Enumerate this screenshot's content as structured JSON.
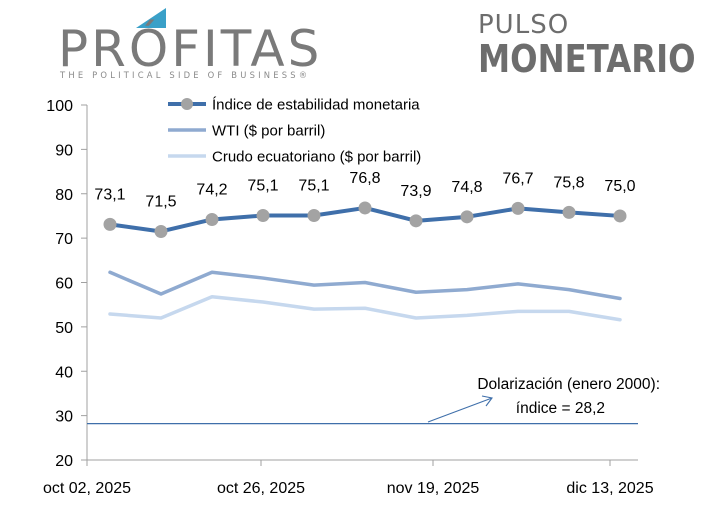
{
  "brand": {
    "name": "PRÓFITAS",
    "tagline": "THE POLITICAL SIDE OF BUSINESS",
    "trademark": "®",
    "logo_color": "#3aa0c8",
    "section_line1": "PULSO",
    "section_line2": "MONETARIO"
  },
  "colors": {
    "index": "#3f6faa",
    "marker": "#a3a3a3",
    "wti": "#8faad0",
    "crudo": "#c6d8ee",
    "baseline": "#3f6faa",
    "axis": "#a0a0a0"
  },
  "chart_data": {
    "type": "line",
    "x_ticks": [
      "oct 02, 2025",
      "oct 26, 2025",
      "nov 19, 2025",
      "dic 13, 2025"
    ],
    "ylim": [
      20,
      100
    ],
    "yticks": [
      "20",
      "30",
      "40",
      "50",
      "60",
      "70",
      "80",
      "90",
      "100"
    ],
    "grid": false,
    "legend_position": "top",
    "series": [
      {
        "name": "Índice de estabilidad monetaria",
        "values": [
          73.1,
          71.5,
          74.2,
          75.1,
          75.1,
          76.8,
          73.9,
          74.8,
          76.7,
          75.8,
          75.0
        ],
        "labels": [
          "73,1",
          "71,5",
          "74,2",
          "75,1",
          "75,1",
          "76,8",
          "73,9",
          "74,8",
          "76,7",
          "75,8",
          "75,0"
        ],
        "labeled": [
          true,
          true,
          true,
          true,
          true,
          true,
          true,
          true,
          true,
          true,
          true
        ],
        "markers": [
          true,
          true,
          true,
          true,
          true,
          true,
          true,
          true,
          true,
          true,
          true
        ]
      },
      {
        "name": "WTI ($ por barril)",
        "values": [
          62.3,
          57.4,
          62.3,
          61.0,
          59.4,
          60.0,
          57.8,
          58.4,
          59.7,
          58.4,
          56.4
        ]
      },
      {
        "name": "Crudo ecuatoriano ($ por barril)",
        "values": [
          52.9,
          52.0,
          56.8,
          55.6,
          54.0,
          54.2,
          52.0,
          52.6,
          53.5,
          53.5,
          51.6
        ]
      }
    ],
    "baseline": {
      "value": 28.2
    },
    "annotation": {
      "line1": "Dolarización (enero 2000):",
      "line2": "índice = 28,2"
    }
  }
}
